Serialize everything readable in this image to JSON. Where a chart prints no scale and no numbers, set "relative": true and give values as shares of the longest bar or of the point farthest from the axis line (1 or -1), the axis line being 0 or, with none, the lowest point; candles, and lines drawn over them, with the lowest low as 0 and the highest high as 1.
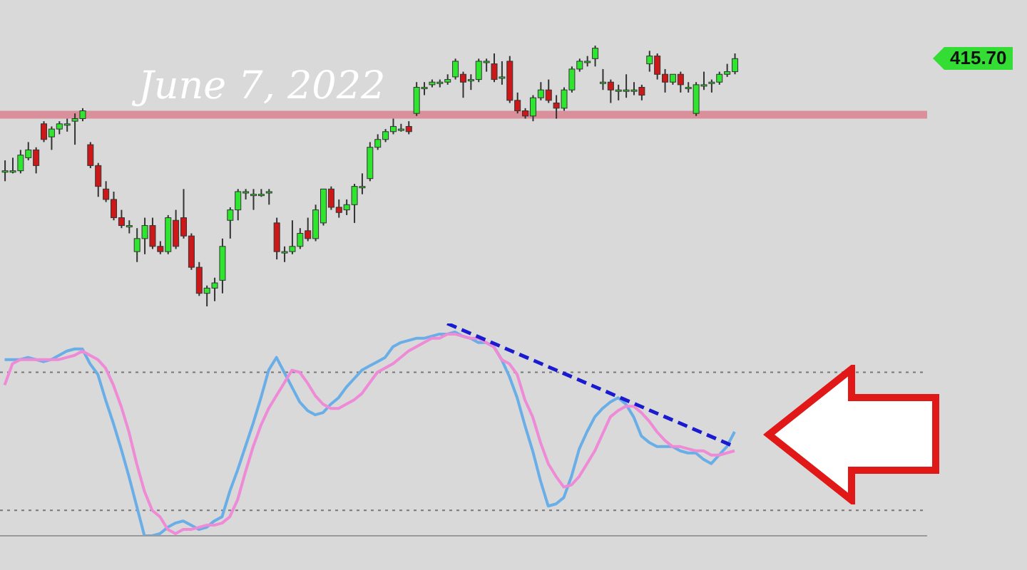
{
  "chart_data": [
    {
      "type": "candlestick",
      "relative": true,
      "tick_labels": false,
      "categories": [
        null,
        null,
        null,
        null,
        null,
        null,
        null,
        null,
        null,
        null,
        null,
        null,
        null,
        null,
        null,
        null,
        null,
        null,
        null,
        null,
        null,
        null,
        null,
        null,
        null,
        null,
        null,
        null,
        null,
        null,
        null,
        null,
        null,
        null,
        null,
        null,
        null,
        null,
        null,
        null,
        null,
        null,
        null,
        null,
        null,
        null,
        null,
        null,
        null,
        null,
        null,
        null,
        null,
        null,
        null,
        null,
        null,
        null,
        null,
        null,
        null,
        null,
        null,
        null,
        null,
        null,
        null,
        null,
        null,
        null,
        null,
        null,
        null,
        null,
        null,
        null,
        null,
        null,
        null,
        null,
        null,
        null,
        null,
        null,
        null,
        null,
        null,
        null,
        null,
        null,
        null,
        null,
        null,
        null,
        null
      ],
      "ohlc": [
        [
          0.52,
          0.56,
          0.48,
          0.52
        ],
        [
          0.52,
          0.57,
          0.51,
          0.52
        ],
        [
          0.52,
          0.6,
          0.51,
          0.58
        ],
        [
          0.57,
          0.63,
          0.56,
          0.6
        ],
        [
          0.6,
          0.61,
          0.51,
          0.54
        ],
        [
          0.7,
          0.71,
          0.63,
          0.64
        ],
        [
          0.65,
          0.69,
          0.6,
          0.68
        ],
        [
          0.68,
          0.71,
          0.66,
          0.7
        ],
        [
          0.7,
          0.72,
          0.67,
          0.7
        ],
        [
          0.71,
          0.74,
          0.62,
          0.72
        ],
        [
          0.72,
          0.76,
          0.71,
          0.75
        ],
        [
          0.62,
          0.63,
          0.53,
          0.54
        ],
        [
          0.54,
          0.55,
          0.42,
          0.46
        ],
        [
          0.45,
          0.48,
          0.4,
          0.41
        ],
        [
          0.41,
          0.44,
          0.33,
          0.34
        ],
        [
          0.34,
          0.37,
          0.3,
          0.31
        ],
        [
          0.31,
          0.33,
          0.28,
          0.31
        ],
        [
          0.21,
          0.3,
          0.17,
          0.26
        ],
        [
          0.26,
          0.34,
          0.2,
          0.31
        ],
        [
          0.31,
          0.34,
          0.22,
          0.23
        ],
        [
          0.23,
          0.25,
          0.2,
          0.21
        ],
        [
          0.21,
          0.35,
          0.2,
          0.34
        ],
        [
          0.33,
          0.37,
          0.22,
          0.23
        ],
        [
          0.34,
          0.45,
          0.26,
          0.27
        ],
        [
          0.27,
          0.28,
          0.14,
          0.15
        ],
        [
          0.15,
          0.17,
          0.04,
          0.05
        ],
        [
          0.05,
          0.08,
          0,
          0.07
        ],
        [
          0.07,
          0.11,
          0.02,
          0.09
        ],
        [
          0.1,
          0.26,
          0.05,
          0.23
        ],
        [
          0.33,
          0.38,
          0.26,
          0.37
        ],
        [
          0.37,
          0.45,
          0.33,
          0.44
        ],
        [
          0.44,
          0.45,
          0.41,
          0.44
        ],
        [
          0.43,
          0.45,
          0.37,
          0.43
        ],
        [
          0.43,
          0.45,
          0.42,
          0.43
        ],
        [
          0.44,
          0.45,
          0.39,
          0.44
        ],
        [
          0.32,
          0.34,
          0.18,
          0.21
        ],
        [
          0.21,
          0.23,
          0.17,
          0.21
        ],
        [
          0.21,
          0.33,
          0.2,
          0.23
        ],
        [
          0.23,
          0.3,
          0.22,
          0.28
        ],
        [
          0.29,
          0.34,
          0.25,
          0.26
        ],
        [
          0.26,
          0.39,
          0.25,
          0.37
        ],
        [
          0.32,
          0.45,
          0.31,
          0.45
        ],
        [
          0.45,
          0.46,
          0.37,
          0.38
        ],
        [
          0.38,
          0.41,
          0.34,
          0.36
        ],
        [
          0.37,
          0.41,
          0.35,
          0.39
        ],
        [
          0.39,
          0.47,
          0.32,
          0.46
        ],
        [
          0.46,
          0.51,
          0.43,
          0.46
        ],
        [
          0.49,
          0.63,
          0.48,
          0.61
        ],
        [
          0.61,
          0.66,
          0.6,
          0.64
        ],
        [
          0.64,
          0.68,
          0.63,
          0.67
        ],
        [
          0.67,
          0.72,
          0.66,
          0.69
        ],
        [
          0.68,
          0.7,
          0.67,
          0.68
        ],
        [
          0.69,
          0.71,
          0.66,
          0.67
        ],
        [
          0.74,
          0.86,
          0.73,
          0.84
        ],
        [
          0.84,
          0.86,
          0.81,
          0.84
        ],
        [
          0.85,
          0.87,
          0.84,
          0.86
        ],
        [
          0.86,
          0.87,
          0.84,
          0.86
        ],
        [
          0.86,
          0.89,
          0.85,
          0.87
        ],
        [
          0.88,
          0.95,
          0.87,
          0.94
        ],
        [
          0.89,
          0.9,
          0.8,
          0.86
        ],
        [
          0.87,
          0.89,
          0.83,
          0.87
        ],
        [
          0.87,
          0.95,
          0.86,
          0.94
        ],
        [
          0.94,
          0.95,
          0.9,
          0.94
        ],
        [
          0.93,
          0.97,
          0.86,
          0.87
        ],
        [
          0.88,
          0.94,
          0.85,
          0.88
        ],
        [
          0.94,
          0.96,
          0.78,
          0.79
        ],
        [
          0.79,
          0.82,
          0.74,
          0.75
        ],
        [
          0.75,
          0.76,
          0.72,
          0.73
        ],
        [
          0.73,
          0.81,
          0.71,
          0.8
        ],
        [
          0.8,
          0.86,
          0.79,
          0.83
        ],
        [
          0.83,
          0.87,
          0.78,
          0.79
        ],
        [
          0.78,
          0.81,
          0.72,
          0.76
        ],
        [
          0.76,
          0.84,
          0.75,
          0.83
        ],
        [
          0.83,
          0.92,
          0.82,
          0.91
        ],
        [
          0.91,
          0.95,
          0.9,
          0.94
        ],
        [
          0.94,
          0.96,
          0.92,
          0.94
        ],
        [
          0.95,
          1,
          0.92,
          0.99
        ],
        [
          0.86,
          0.91,
          0.83,
          0.86
        ],
        [
          0.86,
          0.87,
          0.78,
          0.83
        ],
        [
          0.83,
          0.85,
          0.79,
          0.83
        ],
        [
          0.83,
          0.89,
          0.8,
          0.83
        ],
        [
          0.83,
          0.86,
          0.81,
          0.83
        ],
        [
          0.84,
          0.85,
          0.79,
          0.81
        ],
        [
          0.93,
          0.98,
          0.9,
          0.96
        ],
        [
          0.96,
          0.97,
          0.87,
          0.89
        ],
        [
          0.89,
          0.91,
          0.82,
          0.86
        ],
        [
          0.86,
          0.89,
          0.85,
          0.89
        ],
        [
          0.89,
          0.9,
          0.82,
          0.85
        ],
        [
          0.84,
          0.86,
          0.82,
          0.84
        ],
        [
          0.74,
          0.86,
          0.73,
          0.85
        ],
        [
          0.85,
          0.9,
          0.83,
          0.85
        ],
        [
          0.86,
          0.87,
          0.82,
          0.86
        ],
        [
          0.86,
          0.9,
          0.85,
          0.89
        ],
        [
          0.89,
          0.93,
          0.88,
          0.9
        ],
        [
          0.9,
          0.97,
          0.89,
          0.95
        ]
      ],
      "bands": [
        {
          "axis": "y",
          "from": 0.72,
          "to": 0.75,
          "label": "June 7, 2022",
          "color": "#d9909a"
        }
      ],
      "annotations": [
        "415.70"
      ]
    },
    {
      "type": "line",
      "relative": true,
      "tick_labels": false,
      "categories": [
        null,
        null,
        null,
        null,
        null,
        null,
        null,
        null,
        null,
        null,
        null,
        null,
        null,
        null,
        null,
        null,
        null,
        null,
        null,
        null,
        null,
        null,
        null,
        null,
        null,
        null,
        null,
        null,
        null,
        null,
        null,
        null,
        null,
        null,
        null,
        null,
        null,
        null,
        null,
        null,
        null,
        null,
        null,
        null,
        null,
        null,
        null,
        null,
        null,
        null,
        null,
        null,
        null,
        null,
        null,
        null,
        null,
        null,
        null,
        null,
        null,
        null,
        null,
        null,
        null,
        null,
        null,
        null,
        null,
        null,
        null,
        null,
        null,
        null,
        null,
        null,
        null,
        null,
        null,
        null,
        null,
        null,
        null,
        null,
        null,
        null,
        null,
        null,
        null,
        null,
        null,
        null,
        null,
        null,
        null
      ],
      "series": [
        {
          "color": "#6aaee8",
          "values": [
            0.83,
            0.83,
            0.83,
            0.84,
            0.83,
            0.82,
            0.83,
            0.85,
            0.87,
            0.88,
            0.88,
            0.81,
            0.76,
            0.64,
            0.53,
            0.41,
            0.28,
            0.14,
            0,
            0,
            0.01,
            0.04,
            0.06,
            0.07,
            0.05,
            0.03,
            0.04,
            0.07,
            0.09,
            0.21,
            0.31,
            0.42,
            0.53,
            0.65,
            0.78,
            0.84,
            0.77,
            0.7,
            0.63,
            0.59,
            0.57,
            0.58,
            0.62,
            0.65,
            0.7,
            0.74,
            0.78,
            0.8,
            0.82,
            0.84,
            0.89,
            0.91,
            0.92,
            0.93,
            0.93,
            0.94,
            0.95,
            0.95,
            0.96,
            0.94,
            0.93,
            0.91,
            0.91,
            0.89,
            0.83,
            0.75,
            0.65,
            0.52,
            0.4,
            0.26,
            0.14,
            0.15,
            0.18,
            0.28,
            0.41,
            0.49,
            0.56,
            0.6,
            0.63,
            0.65,
            0.62,
            0.56,
            0.47,
            0.44,
            0.42,
            0.42,
            0.42,
            0.4,
            0.39,
            0.39,
            0.36,
            0.34,
            0.38,
            0.42,
            0.49
          ]
        },
        {
          "color": "#ee8ad6",
          "values": [
            0.71,
            0.81,
            0.83,
            0.83,
            0.83,
            0.83,
            0.83,
            0.83,
            0.84,
            0.85,
            0.87,
            0.85,
            0.83,
            0.79,
            0.71,
            0.61,
            0.49,
            0.34,
            0.21,
            0.12,
            0.09,
            0.03,
            0.01,
            0.03,
            0.03,
            0.04,
            0.05,
            0.05,
            0.06,
            0.09,
            0.17,
            0.3,
            0.42,
            0.52,
            0.6,
            0.66,
            0.72,
            0.78,
            0.77,
            0.72,
            0.66,
            0.62,
            0.6,
            0.6,
            0.62,
            0.64,
            0.67,
            0.72,
            0.77,
            0.79,
            0.81,
            0.84,
            0.87,
            0.89,
            0.91,
            0.93,
            0.93,
            0.95,
            0.95,
            0.94,
            0.93,
            0.93,
            0.91,
            0.89,
            0.83,
            0.81,
            0.76,
            0.64,
            0.56,
            0.44,
            0.34,
            0.28,
            0.23,
            0.24,
            0.28,
            0.34,
            0.4,
            0.48,
            0.56,
            0.59,
            0.61,
            0.61,
            0.58,
            0.54,
            0.49,
            0.45,
            0.42,
            0.42,
            0.41,
            0.4,
            0.4,
            0.38,
            0.38,
            0.39,
            0.4
          ]
        },
        {
          "type": "line",
          "color": "#1a1ad0",
          "line_style": "dashed",
          "values": [
            null,
            null,
            null,
            null,
            null,
            null,
            null,
            null,
            null,
            null,
            null,
            null,
            null,
            null,
            null,
            null,
            null,
            null,
            null,
            null,
            null,
            null,
            null,
            null,
            null,
            null,
            null,
            null,
            null,
            null,
            null,
            null,
            null,
            null,
            null,
            null,
            null,
            null,
            null,
            null,
            null,
            null,
            null,
            null,
            null,
            null,
            null,
            null,
            null,
            null,
            null,
            null,
            null,
            null,
            null,
            null,
            null,
            1,
            null,
            null,
            null,
            null,
            null,
            null,
            null,
            null,
            null,
            null,
            null,
            null,
            null,
            null,
            null,
            null,
            null,
            null,
            null,
            null,
            null,
            null,
            null,
            null,
            null,
            null,
            null,
            null,
            null,
            null,
            null,
            null,
            null,
            null,
            null,
            null,
            0.42
          ]
        }
      ],
      "ref_lines": [
        {
          "axis": "y",
          "value": 0.77,
          "color": "#777777",
          "line_style": "dotted"
        },
        {
          "axis": "y",
          "value": 0.12,
          "color": "#777777",
          "line_style": "dotted"
        }
      ]
    }
  ]
}
